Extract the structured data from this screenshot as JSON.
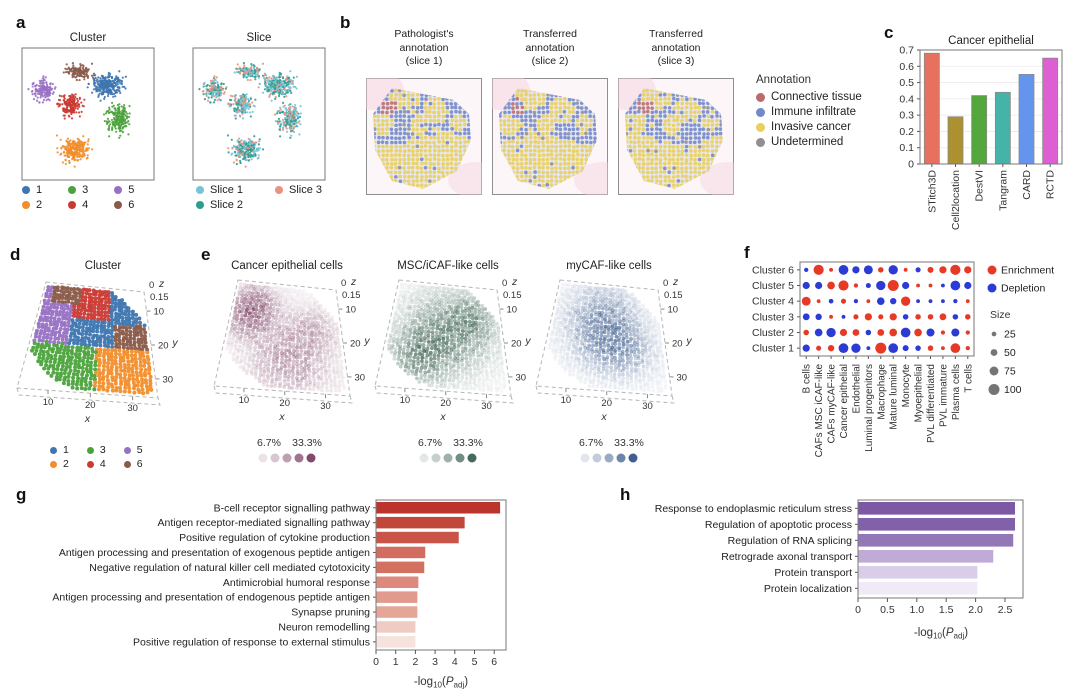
{
  "panels": {
    "a": {
      "label": "a"
    },
    "b": {
      "label": "b",
      "titles": [
        [
          "Pathologist's",
          "annotation",
          "(slice 1)"
        ],
        [
          "Transferred",
          "annotation",
          "(slice 2)"
        ],
        [
          "Transferred",
          "annotation",
          "(slice 3)"
        ]
      ],
      "legend": {
        "title": "Annotation",
        "items": [
          {
            "label": "Connective tissue",
            "color": "#bd6a6d"
          },
          {
            "label": "Immune infiltrate",
            "color": "#7388c9"
          },
          {
            "label": "Invasive cancer",
            "color": "#e9cf5c"
          },
          {
            "label": "Undetermined",
            "color": "#909090"
          }
        ]
      }
    },
    "c": {
      "label": "c"
    },
    "d": {
      "label": "d"
    },
    "e": {
      "label": "e"
    },
    "f": {
      "label": "f"
    },
    "g": {
      "label": "g"
    },
    "h": {
      "label": "h"
    }
  },
  "chart_data": [
    {
      "panel": "a",
      "type": "scatter",
      "subtype": "umap-pair",
      "plots": [
        {
          "title": "Cluster",
          "color_by": "cluster"
        },
        {
          "title": "Slice",
          "color_by": "slice"
        }
      ],
      "clusters": [
        {
          "label": "1",
          "color": "#3d76b0",
          "center": [
            0.64,
            0.28
          ],
          "spread": [
            0.14,
            0.1
          ],
          "n": 260
        },
        {
          "label": "2",
          "color": "#f28e2b",
          "center": [
            0.4,
            0.77
          ],
          "spread": [
            0.13,
            0.1
          ],
          "n": 250
        },
        {
          "label": "3",
          "color": "#4ca33c",
          "center": [
            0.73,
            0.53
          ],
          "spread": [
            0.1,
            0.12
          ],
          "n": 210
        },
        {
          "label": "4",
          "color": "#c93a33",
          "center": [
            0.37,
            0.43
          ],
          "spread": [
            0.1,
            0.09
          ],
          "n": 170
        },
        {
          "label": "5",
          "color": "#9871c4",
          "center": [
            0.16,
            0.32
          ],
          "spread": [
            0.09,
            0.09
          ],
          "n": 150
        },
        {
          "label": "6",
          "color": "#8a5a49",
          "center": [
            0.43,
            0.18
          ],
          "spread": [
            0.11,
            0.06
          ],
          "n": 130
        }
      ],
      "slices": [
        {
          "label": "Slice 1",
          "color": "#76c3d8",
          "frac": 0.38
        },
        {
          "label": "Slice 2",
          "color": "#2d9d8f",
          "frac": 0.37
        },
        {
          "label": "Slice 3",
          "color": "#ea9180",
          "frac": 0.25
        }
      ]
    },
    {
      "panel": "c",
      "type": "bar",
      "title": "Cancer epithelial",
      "categories": [
        "STitch3D",
        "Cell2location",
        "DestVI",
        "Tangram",
        "CARD",
        "RCTD"
      ],
      "values": [
        0.68,
        0.29,
        0.42,
        0.44,
        0.55,
        0.65
      ],
      "colors": [
        "#e8705e",
        "#ab9130",
        "#53a73c",
        "#45b3a8",
        "#6394ee",
        "#dd60d2"
      ],
      "ylim": [
        0,
        0.7
      ],
      "ytick_labels": [
        "0",
        "0.1",
        "0.2",
        "0.3",
        "0.4",
        "0.5",
        "0.6",
        "0.7"
      ]
    },
    {
      "panel": "d",
      "type": "scatter3d",
      "title": "Cluster",
      "axis": {
        "x_ticks": [
          "10",
          "20",
          "30"
        ],
        "y_ticks": [
          "10",
          "20",
          "30"
        ],
        "z_ticks": [
          "0",
          "0.15"
        ],
        "xlabel": "x",
        "ylabel": "y",
        "zlabel": "z"
      },
      "legend": [
        {
          "label": "1",
          "color": "#3d76b0"
        },
        {
          "label": "2",
          "color": "#f28e2b"
        },
        {
          "label": "3",
          "color": "#4ca33c"
        },
        {
          "label": "4",
          "color": "#c93a33"
        },
        {
          "label": "5",
          "color": "#9871c4"
        },
        {
          "label": "6",
          "color": "#8a5a49"
        }
      ]
    },
    {
      "panel": "e",
      "type": "scatter3d-multi",
      "axis": {
        "x_ticks": [
          "10",
          "20",
          "30"
        ],
        "y_ticks": [
          "10",
          "20",
          "30"
        ],
        "z_ticks": [
          "0",
          "0.15"
        ],
        "xlabel": "x",
        "ylabel": "y",
        "zlabel": "z"
      },
      "scale": {
        "min_label": "6.7%",
        "max_label": "33.3%",
        "steps": 5
      },
      "plots": [
        {
          "title": "Cancer epithelial cells",
          "color": "#7c3f63",
          "blobs": [
            [
              0.18,
              0.28,
              0.22,
              0.8
            ],
            [
              0.55,
              0.72,
              0.3,
              0.45
            ],
            [
              0.75,
              0.4,
              0.2,
              0.3
            ]
          ]
        },
        {
          "title": "MSC/iCAF-like cells",
          "color": "#3c6353",
          "blobs": [
            [
              0.5,
              0.45,
              0.35,
              0.55
            ],
            [
              0.3,
              0.7,
              0.25,
              0.5
            ],
            [
              0.75,
              0.3,
              0.2,
              0.4
            ]
          ]
        },
        {
          "title": "myCAF-like cells",
          "color": "#35568a",
          "blobs": [
            [
              0.45,
              0.35,
              0.3,
              0.5
            ],
            [
              0.6,
              0.6,
              0.25,
              0.45
            ]
          ]
        }
      ]
    },
    {
      "panel": "f",
      "type": "dotplot",
      "rows": [
        "Cluster 6",
        "Cluster 5",
        "Cluster 4",
        "Cluster 3",
        "Cluster 2",
        "Cluster 1"
      ],
      "columns": [
        "B cells",
        "CAFs MSC iCAF-like",
        "CAFs myCAF-like",
        "Cancer epithelial",
        "Endothelial",
        "Luminal progenitors",
        "Macrophage",
        "Mature luminal",
        "Monocyte",
        "Myoepithelial",
        "PVL differentiated",
        "PVL immature",
        "Plasma cells",
        "T cells"
      ],
      "matrix": [
        [
          [
            "D",
            20
          ],
          [
            "E",
            90
          ],
          [
            "E",
            15
          ],
          [
            "D",
            85
          ],
          [
            "D",
            55
          ],
          [
            "D",
            75
          ],
          [
            "E",
            35
          ],
          [
            "D",
            80
          ],
          [
            "E",
            15
          ],
          [
            "D",
            30
          ],
          [
            "E",
            40
          ],
          [
            "E",
            55
          ],
          [
            "E",
            90
          ],
          [
            "E",
            55
          ]
        ],
        [
          [
            "D",
            55
          ],
          [
            "D",
            55
          ],
          [
            "E",
            60
          ],
          [
            "E",
            90
          ],
          [
            "E",
            20
          ],
          [
            "D",
            30
          ],
          [
            "D",
            80
          ],
          [
            "E",
            100
          ],
          [
            "D",
            55
          ],
          [
            "E",
            15
          ],
          [
            "E",
            15
          ],
          [
            "D",
            15
          ],
          [
            "D",
            85
          ],
          [
            "D",
            55
          ]
        ],
        [
          [
            "E",
            75
          ],
          [
            "E",
            15
          ],
          [
            "D",
            25
          ],
          [
            "E",
            30
          ],
          [
            "D",
            20
          ],
          [
            "E",
            15
          ],
          [
            "D",
            60
          ],
          [
            "D",
            45
          ],
          [
            "E",
            80
          ],
          [
            "D",
            15
          ],
          [
            "D",
            15
          ],
          [
            "D",
            15
          ],
          [
            "D",
            20
          ],
          [
            "E",
            15
          ]
        ],
        [
          [
            "D",
            50
          ],
          [
            "D",
            45
          ],
          [
            "E",
            15
          ],
          [
            "D",
            15
          ],
          [
            "E",
            30
          ],
          [
            "E",
            55
          ],
          [
            "E",
            30
          ],
          [
            "E",
            55
          ],
          [
            "D",
            35
          ],
          [
            "E",
            35
          ],
          [
            "E",
            35
          ],
          [
            "E",
            50
          ],
          [
            "D",
            35
          ],
          [
            "E",
            35
          ]
        ],
        [
          [
            "E",
            35
          ],
          [
            "D",
            60
          ],
          [
            "D",
            80
          ],
          [
            "E",
            55
          ],
          [
            "E",
            50
          ],
          [
            "D",
            35
          ],
          [
            "E",
            50
          ],
          [
            "E",
            60
          ],
          [
            "D",
            85
          ],
          [
            "E",
            60
          ],
          [
            "D",
            65
          ],
          [
            "E",
            20
          ],
          [
            "D",
            65
          ],
          [
            "E",
            20
          ]
        ],
        [
          [
            "D",
            55
          ],
          [
            "E",
            30
          ],
          [
            "E",
            45
          ],
          [
            "D",
            85
          ],
          [
            "D",
            80
          ],
          [
            "D",
            15
          ],
          [
            "E",
            100
          ],
          [
            "D",
            85
          ],
          [
            "D",
            40
          ],
          [
            "D",
            35
          ],
          [
            "E",
            35
          ],
          [
            "E",
            15
          ],
          [
            "E",
            85
          ],
          [
            "E",
            20
          ]
        ]
      ],
      "legend": {
        "enrichment": {
          "label": "Enrichment",
          "color": "#e63a27"
        },
        "depletion": {
          "label": "Depletion",
          "color": "#2c3bd4"
        },
        "size_title": "Size",
        "sizes": [
          25,
          50,
          75,
          100
        ]
      }
    },
    {
      "panel": "g",
      "type": "bar-h",
      "categories": [
        "B-cell receptor signalling pathway",
        "Antigen receptor-mediated signalling pathway",
        "Positive regulation of cytokine production",
        "Antigen processing and presentation of exogenous peptide antigen",
        "Negative regulation of natural killer cell mediated cytotoxicity",
        "Antimicrobial humoral response",
        "Antigen processing and presentation of endogenous peptide antigen",
        "Synapse pruning",
        "Neuron remodelling",
        "Positive regulation of response to external stimulus"
      ],
      "values": [
        6.3,
        4.5,
        4.2,
        2.5,
        2.45,
        2.15,
        2.1,
        2.1,
        2.0,
        2.0
      ],
      "colors": [
        "#bc352c",
        "#c2473b",
        "#ca5448",
        "#d36c60",
        "#d4705f",
        "#dd8a7c",
        "#e19a8d",
        "#e4a696",
        "#efccc3",
        "#f6e3dd"
      ],
      "xticks": [
        0,
        1,
        2,
        3,
        4,
        5,
        6
      ],
      "xtick_labels": [
        "0",
        "1",
        "2",
        "3",
        "4",
        "5",
        "6"
      ],
      "xlabel_parts": {
        "pre": "-log",
        "sub": "10",
        "open": "(",
        "pvar": "P",
        "psub": "adj",
        "close": ")"
      }
    },
    {
      "panel": "h",
      "type": "bar-h",
      "categories": [
        "Response to endoplasmic reticulum stress",
        "Regulation of apoptotic process",
        "Regulation of RNA splicing",
        "Retrograde axonal transport",
        "Protein transport",
        "Protein localization"
      ],
      "values": [
        2.67,
        2.67,
        2.64,
        2.3,
        2.03,
        2.03
      ],
      "colors": [
        "#7c58a5",
        "#8162aa",
        "#9278b7",
        "#c0abd7",
        "#d9cdea",
        "#efeaf6"
      ],
      "xticks": [
        0,
        0.5,
        1,
        1.5,
        2,
        2.5
      ],
      "xtick_labels": [
        "0",
        "0.5",
        "1.0",
        "1.5",
        "2.0",
        "2.5"
      ],
      "xlabel_parts": {
        "pre": "-log",
        "sub": "10",
        "open": "(",
        "pvar": "P",
        "psub": "adj",
        "close": ")"
      }
    }
  ]
}
